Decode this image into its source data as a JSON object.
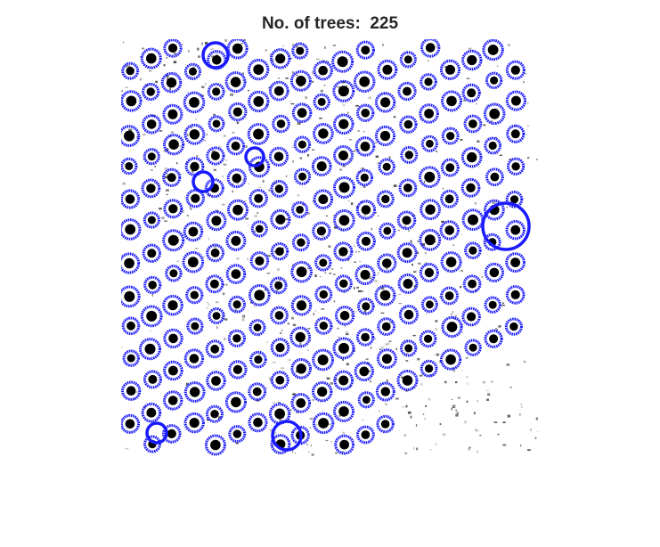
{
  "figure": {
    "title": "No. of trees:  225"
  },
  "panel": {
    "description": "binary tree-detection image with detected trees marked",
    "marker_color": "#1a1aff",
    "blob_color": "#000000",
    "background_color": "#ffffff"
  }
}
